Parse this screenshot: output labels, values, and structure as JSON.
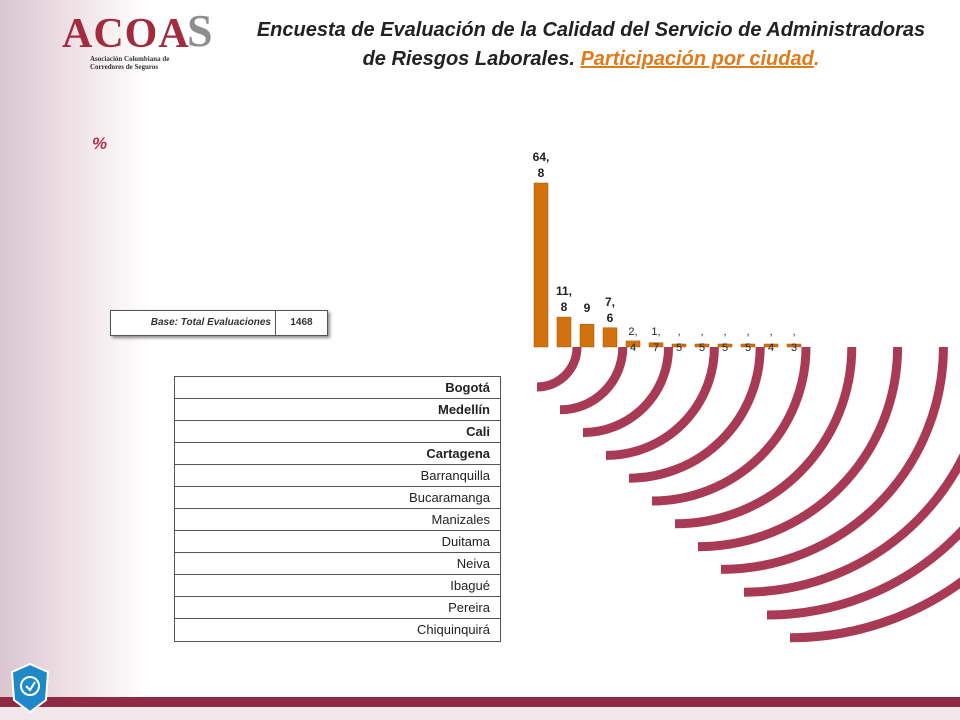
{
  "logo": {
    "name": "ACOAS",
    "sub_line1": "Asociación Colombiana de",
    "sub_line2": "Corredores de Seguros"
  },
  "header": {
    "title_part1": "Encuesta de Evaluación de la Calidad del Servicio de Administradoras",
    "title_part2": "de Riesgos Laborales. ",
    "title_highlight": "Participación por ciudad",
    "title_end": "."
  },
  "unit_label": "%",
  "base": {
    "label": "Base: Total Evaluaciones",
    "value": "1468"
  },
  "colors": {
    "bar": "#d2720f",
    "arc": "#a93a55",
    "accent": "#e07b1c"
  },
  "chart_data": {
    "type": "bar",
    "categories": [
      "Bogotá",
      "Medellín",
      "Cali",
      "Cartagena",
      "Barranquilla",
      "Bucaramanga",
      "Manizales",
      "Duitama",
      "Neiva",
      "Ibagué",
      "Pereira",
      "Chiquinquirá"
    ],
    "values": [
      64.8,
      11.8,
      9,
      7.6,
      2.4,
      1.7,
      0.5,
      0.5,
      0.5,
      0.5,
      0.4,
      0.3
    ],
    "data_labels": [
      "64,8",
      "11,8",
      "9",
      "7,6",
      "2,4",
      "1,7",
      ",5",
      ",5",
      ",5",
      ",5",
      ",4",
      ",3"
    ],
    "bold_categories": [
      "Bogotá",
      "Medellín",
      "Cali",
      "Cartagena"
    ]
  }
}
